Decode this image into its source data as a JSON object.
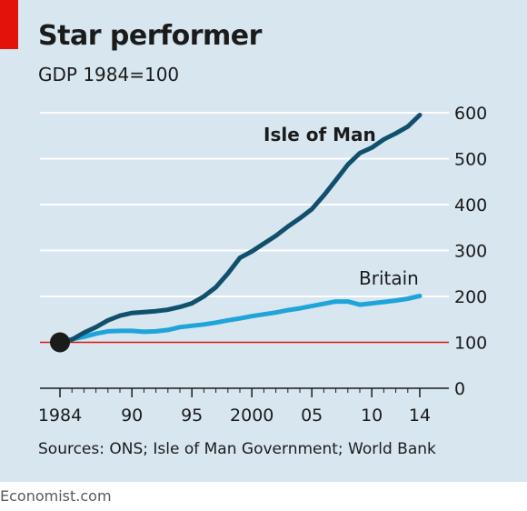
{
  "title": "Star performer",
  "subtitle": "GDP 1984=100",
  "source": "Sources: ONS; Isle of Man Government; World Bank",
  "brand": "Economist.com",
  "colors": {
    "background": "#d7e6ef",
    "accent_red": "#e3120b",
    "isle_of_man": "#10506d",
    "britain": "#1fa4da",
    "grid": "#ffffff",
    "baseline": "#e3120b"
  },
  "chart_data": {
    "type": "line",
    "title": "Star performer",
    "subtitle": "GDP 1984=100",
    "xlim": [
      1984,
      2014
    ],
    "ylim": [
      0,
      600
    ],
    "y_ticks": [
      0,
      100,
      200,
      300,
      400,
      500,
      600
    ],
    "y_tick_labels": [
      "0",
      "100",
      "200",
      "300",
      "400",
      "500",
      "600"
    ],
    "x_ticks": [
      1984,
      1990,
      1995,
      2000,
      2005,
      2010,
      2014
    ],
    "x_tick_labels": [
      "1984",
      "90",
      "95",
      "2000",
      "05",
      "10",
      "14"
    ],
    "grid": true,
    "reference_line": 100,
    "start_marker": {
      "x": 1984,
      "y": 100
    },
    "series": [
      {
        "name": "Isle of Man",
        "x": [
          1984,
          1985,
          1986,
          1987,
          1988,
          1989,
          1990,
          1991,
          1992,
          1993,
          1994,
          1995,
          1996,
          1997,
          1998,
          1999,
          2000,
          2001,
          2002,
          2003,
          2004,
          2005,
          2006,
          2007,
          2008,
          2009,
          2010,
          2011,
          2012,
          2013,
          2014
        ],
        "values": [
          100,
          106,
          121,
          133,
          148,
          158,
          164,
          166,
          168,
          171,
          177,
          185,
          200,
          220,
          250,
          284,
          298,
          315,
          332,
          352,
          370,
          390,
          420,
          453,
          487,
          512,
          524,
          542,
          555,
          570,
          595
        ]
      },
      {
        "name": "Britain",
        "x": [
          1984,
          1985,
          1986,
          1987,
          1988,
          1989,
          1990,
          1991,
          1992,
          1993,
          1994,
          1995,
          1996,
          1997,
          1998,
          1999,
          2000,
          2001,
          2002,
          2003,
          2004,
          2005,
          2006,
          2007,
          2008,
          2009,
          2010,
          2011,
          2012,
          2013,
          2014
        ],
        "values": [
          100,
          107,
          112,
          119,
          124,
          125,
          125,
          123,
          124,
          127,
          133,
          136,
          139,
          143,
          148,
          152,
          157,
          161,
          165,
          170,
          174,
          179,
          184,
          189,
          189,
          182,
          185,
          188,
          191,
          195,
          201
        ]
      }
    ]
  }
}
